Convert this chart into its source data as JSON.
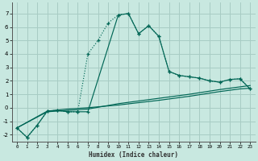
{
  "xlabel": "Humidex (Indice chaleur)",
  "xlim": [
    -0.5,
    23.5
  ],
  "ylim": [
    -2.5,
    7.8
  ],
  "xticks": [
    0,
    1,
    2,
    3,
    4,
    5,
    6,
    7,
    8,
    9,
    10,
    11,
    12,
    13,
    14,
    15,
    16,
    17,
    18,
    19,
    20,
    21,
    22,
    23
  ],
  "yticks": [
    -2,
    -1,
    0,
    1,
    2,
    3,
    4,
    5,
    6,
    7
  ],
  "bg_color": "#c8e8e0",
  "grid_color": "#a8ccc4",
  "line_color": "#006655",
  "line1_x": [
    0,
    1,
    2,
    3,
    4,
    5,
    6,
    7,
    8,
    9,
    10,
    11,
    12,
    13,
    14,
    15,
    16,
    17,
    18,
    19,
    20,
    21,
    22,
    23
  ],
  "line1_y": [
    -1.5,
    -2.2,
    -1.3,
    -0.25,
    -0.2,
    -0.3,
    -0.3,
    4.0,
    5.0,
    6.3,
    6.9,
    7.0,
    5.5,
    6.1,
    5.3,
    2.7,
    2.4,
    2.3,
    2.2,
    2.0,
    1.9,
    2.1,
    2.15,
    1.4
  ],
  "line2_x": [
    0,
    1,
    2,
    3,
    4,
    5,
    6,
    7,
    10,
    11,
    12,
    13,
    14,
    15,
    16,
    17,
    18,
    19,
    20,
    21,
    22,
    23
  ],
  "line2_y": [
    -1.5,
    -2.2,
    -1.3,
    -0.25,
    -0.2,
    -0.3,
    -0.3,
    -0.3,
    6.9,
    7.0,
    5.5,
    6.1,
    5.3,
    2.7,
    2.4,
    2.3,
    2.2,
    2.0,
    1.9,
    2.1,
    2.15,
    1.4
  ],
  "line3_x": [
    0,
    3,
    5,
    7,
    10,
    14,
    17,
    20,
    22,
    23
  ],
  "line3_y": [
    -1.5,
    -0.25,
    -0.1,
    0.0,
    0.2,
    0.55,
    0.85,
    1.2,
    1.4,
    1.45
  ],
  "line4_x": [
    0,
    3,
    5,
    7,
    10,
    14,
    17,
    20,
    22,
    23
  ],
  "line4_y": [
    -1.5,
    -0.3,
    -0.2,
    -0.1,
    0.3,
    0.7,
    1.0,
    1.35,
    1.55,
    1.65
  ]
}
